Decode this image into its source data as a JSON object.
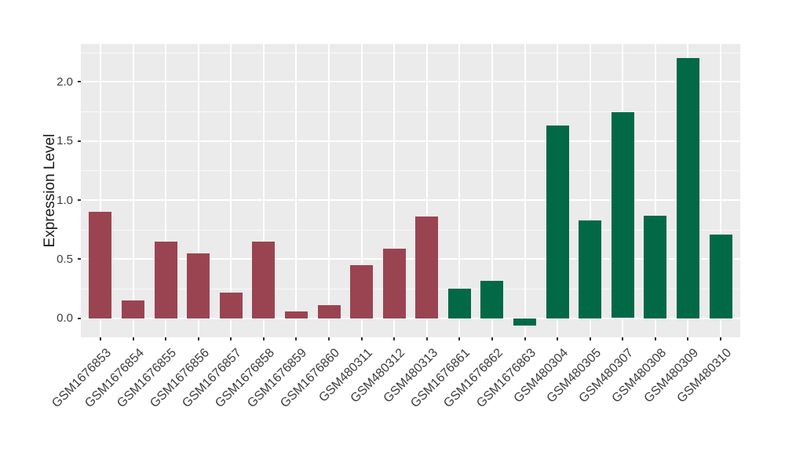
{
  "chart_data": {
    "type": "bar",
    "title": "",
    "xlabel": "",
    "ylabel": "Expression Level",
    "legend": "none",
    "grid": true,
    "panel_bg": "#EBEBEB",
    "grid_color": "#FFFFFF",
    "ylim": [
      -0.16,
      2.32
    ],
    "yticks": [
      0.0,
      0.5,
      1.0,
      1.5,
      2.0
    ],
    "ytick_labels": [
      "0.0",
      "0.5",
      "1.0",
      "1.5",
      "2.0"
    ],
    "categories": [
      "GSM1676853",
      "GSM1676854",
      "GSM1676855",
      "GSM1676856",
      "GSM1676857",
      "GSM1676858",
      "GSM1676859",
      "GSM1676860",
      "GSM480311",
      "GSM480312",
      "GSM480313",
      "GSM1676861",
      "GSM1676862",
      "GSM1676863",
      "GSM480304",
      "GSM480305",
      "GSM480307",
      "GSM480308",
      "GSM480309",
      "GSM480310"
    ],
    "values": [
      0.9,
      0.15,
      0.65,
      0.55,
      0.22,
      0.65,
      0.06,
      0.11,
      0.45,
      0.59,
      0.86,
      0.25,
      0.32,
      -0.06,
      1.63,
      0.83,
      1.74,
      0.87,
      2.2,
      0.71
    ],
    "groups": [
      {
        "name": "maroon-group",
        "color": "#9B4451",
        "start": 0,
        "end": 10
      },
      {
        "name": "green-group",
        "color": "#016946",
        "start": 11,
        "end": 19
      }
    ]
  }
}
